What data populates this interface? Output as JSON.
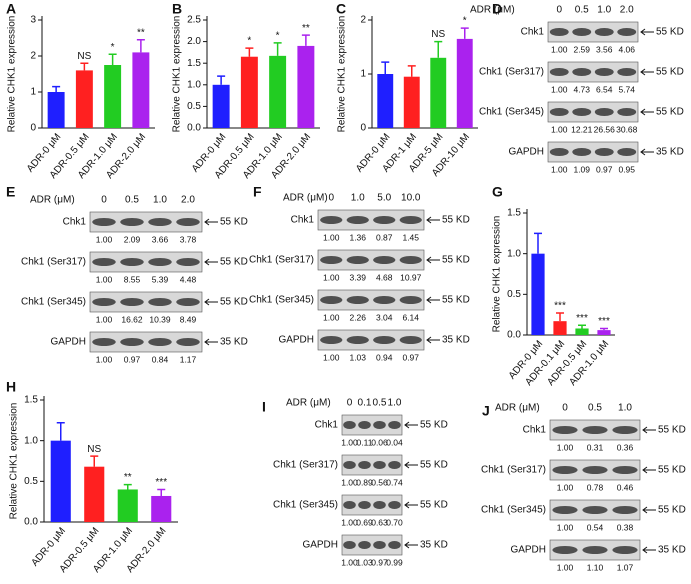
{
  "chart_data": [
    {
      "type": "bar",
      "label": "A",
      "y_label": "Relative CHK1 expression",
      "categories": [
        "ADR-0 μM",
        "ADR-0.5 μM",
        "ADR-1.0 μM",
        "ADR-2.0 μM"
      ],
      "values": [
        1.0,
        1.6,
        1.75,
        2.1
      ],
      "errors": [
        0.15,
        0.2,
        0.3,
        0.35
      ],
      "annotations": [
        null,
        "NS",
        "*",
        "**"
      ],
      "colors": [
        "#1f1fff",
        "#ff2020",
        "#22cc22",
        "#aa22ee"
      ],
      "ylim": [
        0,
        3
      ],
      "yticks": [
        0,
        1,
        2,
        3
      ]
    },
    {
      "type": "bar",
      "label": "B",
      "y_label": "Relative CHK1 expression",
      "categories": [
        "ADR-0 μM",
        "ADR-0.5 μM",
        "ADR-1.0 μM",
        "ADR-2.0 μM"
      ],
      "values": [
        1.0,
        1.65,
        1.67,
        1.9
      ],
      "errors": [
        0.2,
        0.2,
        0.3,
        0.25
      ],
      "annotations": [
        null,
        "*",
        "*",
        "**"
      ],
      "colors": [
        "#1f1fff",
        "#ff2020",
        "#22cc22",
        "#aa22ee"
      ],
      "ylim": [
        0,
        2.5
      ],
      "yticks": [
        {
          "value": 0,
          "label": "0.0"
        },
        0.5,
        {
          "value": 1,
          "label": "1.0"
        },
        1.5,
        {
          "value": 2,
          "label": "2.0"
        },
        2.5
      ]
    },
    {
      "type": "bar",
      "label": "C",
      "y_label": "Relative CHK1 expression",
      "categories": [
        "ADR-0 μM",
        "ADR-1 μM",
        "ADR-5 μM",
        "ADR-10 μM"
      ],
      "values": [
        1.0,
        0.95,
        1.3,
        1.65
      ],
      "errors": [
        0.22,
        0.2,
        0.3,
        0.2
      ],
      "annotations": [
        null,
        null,
        "NS",
        "*"
      ],
      "colors": [
        "#1f1fff",
        "#ff2020",
        "#22cc22",
        "#aa22ee"
      ],
      "ylim": [
        0,
        2
      ],
      "yticks": [
        0,
        1,
        2
      ]
    },
    {
      "type": "bar",
      "label": "G",
      "y_label": "Relative CHK1 expression",
      "categories": [
        "ADR-0 μM",
        "ADR-0.1 μM",
        "ADR-0.5 μM",
        "ADR-1.0 μM"
      ],
      "values": [
        1.0,
        0.17,
        0.08,
        0.06
      ],
      "errors": [
        0.25,
        0.1,
        0.04,
        0.02
      ],
      "annotations": [
        null,
        "***",
        "***",
        "***"
      ],
      "colors": [
        "#1f1fff",
        "#ff2020",
        "#22cc22",
        "#aa22ee"
      ],
      "ylim": [
        0,
        1.5
      ],
      "yticks": [
        {
          "value": 0,
          "label": "0.0"
        },
        0.5,
        {
          "value": 1,
          "label": "1.0"
        },
        1.5
      ]
    },
    {
      "type": "bar",
      "label": "H",
      "y_label": "Relative CHK1 expression",
      "categories": [
        "ADR-0 μM",
        "ADR-0.5 μM",
        "ADR-1.0 μM",
        "ADR-2.0 μM"
      ],
      "values": [
        1.0,
        0.68,
        0.4,
        0.32
      ],
      "errors": [
        0.22,
        0.13,
        0.06,
        0.08
      ],
      "annotations": [
        null,
        "NS",
        "**",
        "***"
      ],
      "colors": [
        "#1f1fff",
        "#ff2020",
        "#22cc22",
        "#aa22ee"
      ],
      "ylim": [
        0,
        1.5
      ],
      "yticks": [
        {
          "value": 0,
          "label": "0.0"
        },
        0.5,
        {
          "value": 1,
          "label": "1.0"
        },
        1.5
      ]
    }
  ],
  "blots": [
    {
      "label": "D",
      "header": "ADR (μM)",
      "concentrations": [
        "0",
        "0.5",
        "1.0",
        "2.0"
      ],
      "rows": [
        {
          "name": "Chk1",
          "size": "55 KD",
          "values": [
            "1.00",
            "2.59",
            "3.56",
            "4.06"
          ]
        },
        {
          "name": "Chk1 (Ser317)",
          "size": "55 KD",
          "values": [
            "1.00",
            "4.73",
            "6.54",
            "5.74"
          ]
        },
        {
          "name": "Chk1 (Ser345)",
          "size": "55 KD",
          "values": [
            "1.00",
            "12.21",
            "26.56",
            "30.68"
          ]
        },
        {
          "name": "GAPDH",
          "size": "35 KD",
          "values": [
            "1.00",
            "1.09",
            "0.97",
            "0.95"
          ]
        }
      ]
    },
    {
      "label": "E",
      "header": "ADR (μM)",
      "concentrations": [
        "0",
        "0.5",
        "1.0",
        "2.0"
      ],
      "rows": [
        {
          "name": "Chk1",
          "size": "55 KD",
          "values": [
            "1.00",
            "2.09",
            "3.66",
            "3.78"
          ]
        },
        {
          "name": "Chk1 (Ser317)",
          "size": "55 KD",
          "values": [
            "1.00",
            "8.55",
            "5.39",
            "4.48"
          ]
        },
        {
          "name": "Chk1 (Ser345)",
          "size": "55 KD",
          "values": [
            "1.00",
            "16.62",
            "10.39",
            "8.49"
          ]
        },
        {
          "name": "GAPDH",
          "size": "35 KD",
          "values": [
            "1.00",
            "0.97",
            "0.84",
            "1.17"
          ]
        }
      ]
    },
    {
      "label": "F",
      "header": "ADR (μM)",
      "concentrations": [
        "0",
        "1.0",
        "5.0",
        "10.0"
      ],
      "rows": [
        {
          "name": "Chk1",
          "size": "55 KD",
          "values": [
            "1.00",
            "1.36",
            "0.87",
            "1.45"
          ]
        },
        {
          "name": "Chk1 (Ser317)",
          "size": "55 KD",
          "values": [
            "1.00",
            "3.39",
            "4.68",
            "10.97"
          ]
        },
        {
          "name": "Chk1 (Ser345)",
          "size": "55 KD",
          "values": [
            "1.00",
            "2.26",
            "3.04",
            "6.14"
          ]
        },
        {
          "name": "GAPDH",
          "size": "35 KD",
          "values": [
            "1.00",
            "1.03",
            "0.94",
            "0.97"
          ]
        }
      ]
    },
    {
      "label": "I",
      "header": "ADR (μM)",
      "concentrations": [
        "0",
        "0.1",
        "0.5",
        "1.0"
      ],
      "rows": [
        {
          "name": "Chk1",
          "size": "55 KD",
          "values": [
            "1.00",
            "0.11",
            "0.06",
            "0.04"
          ]
        },
        {
          "name": "Chk1 (Ser317)",
          "size": "55 KD",
          "values": [
            "1.00",
            "0.89",
            "0.56",
            "0.74"
          ]
        },
        {
          "name": "Chk1 (Ser345)",
          "size": "55 KD",
          "values": [
            "1.00",
            "0.69",
            "0.63",
            "0.70"
          ]
        },
        {
          "name": "GAPDH",
          "size": "35 KD",
          "values": [
            "1.00",
            "1.03",
            "0.97",
            "0.99"
          ]
        }
      ]
    },
    {
      "label": "J",
      "header": "ADR (μM)",
      "concentrations": [
        "0",
        "0.5",
        "1.0"
      ],
      "rows": [
        {
          "name": "Chk1",
          "size": "55 KD",
          "values": [
            "1.00",
            "0.31",
            "0.36"
          ]
        },
        {
          "name": "Chk1 (Ser317)",
          "size": "55 KD",
          "values": [
            "1.00",
            "0.78",
            "0.46"
          ]
        },
        {
          "name": "Chk1 (Ser345)",
          "size": "55 KD",
          "values": [
            "1.00",
            "0.54",
            "0.38"
          ]
        },
        {
          "name": "GAPDH",
          "size": "35 KD",
          "values": [
            "1.00",
            "1.10",
            "1.07"
          ]
        }
      ]
    }
  ]
}
